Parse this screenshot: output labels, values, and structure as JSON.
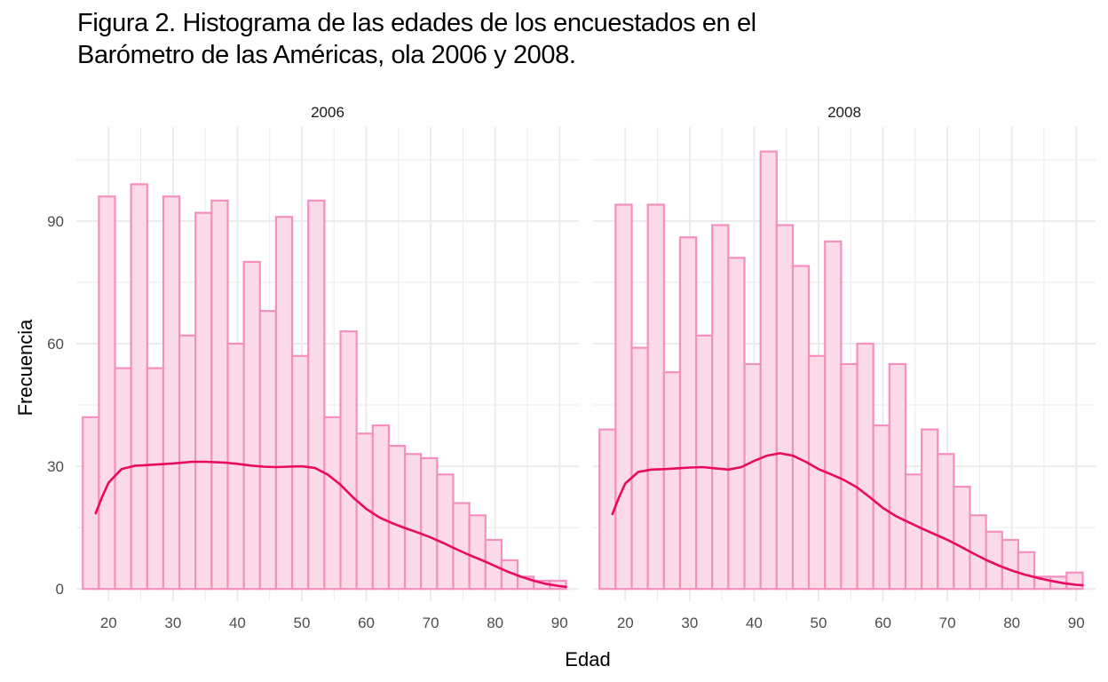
{
  "title": {
    "line1": "Figura 2. Histograma de las edades de los encuestados en el",
    "line2": "Barómetro de las Américas, ola 2006 y 2008."
  },
  "colors": {
    "bar_fill": "#fcdbe8",
    "bar_stroke": "#f58fbd",
    "density_line": "#ea0a5f",
    "grid": "#ebebeb"
  },
  "chart_data": {
    "type": "bar",
    "subtype": "faceted-histogram-with-density",
    "xlabel": "Edad",
    "ylabel": "Frecuencia",
    "xlim": [
      15,
      93
    ],
    "ylim": [
      -3,
      113
    ],
    "x_ticks": [
      20,
      30,
      40,
      50,
      60,
      70,
      80,
      90
    ],
    "y_ticks": [
      0,
      30,
      60,
      90
    ],
    "grid": true,
    "bin_starts": [
      16,
      18.5,
      21,
      23.5,
      26,
      28.5,
      31,
      33.5,
      36,
      38.5,
      41,
      43.5,
      46,
      48.5,
      51,
      53.5,
      56,
      58.5,
      61,
      63.5,
      66,
      68.5,
      71,
      73.5,
      76,
      78.5,
      81,
      83.5,
      86,
      88.5
    ],
    "bin_width": 2.5,
    "facets": [
      {
        "label": "2006",
        "values": [
          42,
          96,
          54,
          99,
          54,
          96,
          62,
          92,
          95,
          60,
          80,
          68,
          91,
          57,
          95,
          42,
          63,
          38,
          40,
          35,
          33,
          32,
          28,
          21,
          18,
          12,
          7,
          3,
          2,
          2
        ],
        "density": {
          "x": [
            18,
            19,
            20,
            22,
            24,
            26,
            28,
            30,
            33,
            35,
            38,
            40,
            42,
            44,
            46,
            48,
            50,
            52,
            54,
            56,
            58,
            60,
            62,
            64,
            66,
            68,
            70,
            72,
            74,
            76,
            78,
            80,
            82,
            84,
            86,
            88,
            90,
            91
          ],
          "y": [
            18.5,
            22.5,
            26,
            29.3,
            30.1,
            30.3,
            30.5,
            30.7,
            31.1,
            31.1,
            30.9,
            30.6,
            30.2,
            29.9,
            29.8,
            29.9,
            30,
            29.6,
            28,
            25.5,
            22.3,
            19.6,
            17.5,
            16.1,
            14.9,
            13.8,
            12.6,
            11.2,
            9.7,
            8.3,
            7,
            5.6,
            4.2,
            3,
            2,
            1.2,
            0.7,
            0.5
          ]
        }
      },
      {
        "label": "2008",
        "values": [
          39,
          94,
          59,
          94,
          53,
          86,
          62,
          89,
          81,
          55,
          107,
          89,
          79,
          57,
          85,
          55,
          60,
          40,
          55,
          28,
          39,
          33,
          25,
          18,
          14,
          12,
          9,
          3,
          3,
          4
        ],
        "density": {
          "x": [
            18,
            19,
            20,
            22,
            24,
            26,
            28,
            30,
            32,
            34,
            36,
            38,
            40,
            42,
            44,
            46,
            48,
            50,
            52,
            54,
            56,
            58,
            60,
            62,
            64,
            66,
            68,
            70,
            72,
            74,
            76,
            78,
            80,
            82,
            84,
            86,
            88,
            90,
            91
          ],
          "y": [
            18.3,
            22.3,
            25.8,
            28.6,
            29.2,
            29.3,
            29.5,
            29.7,
            29.8,
            29.5,
            29.2,
            29.8,
            31.3,
            32.6,
            33.2,
            32.6,
            31.1,
            29.3,
            28,
            26.6,
            24.8,
            22.4,
            19.8,
            17.8,
            16.3,
            14.8,
            13.4,
            12,
            10.4,
            8.7,
            7.1,
            5.7,
            4.5,
            3.5,
            2.7,
            2,
            1.4,
            1,
            0.9
          ]
        }
      }
    ]
  }
}
